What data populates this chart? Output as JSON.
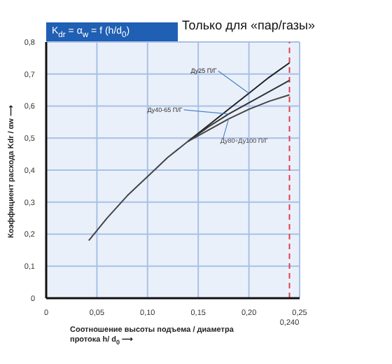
{
  "chart_data": {
    "type": "line",
    "title": "K$_{dr}$ = α$_{w}$ = f (h/d$_{0}$)",
    "subtitle": "Только для «пар/газы»",
    "xlabel": "Соотношение высоты подъема / диаметра протока   h/ d$_{0}$ ⟶",
    "ylabel": "Коэффициент расхода Kdr / αw ⟶",
    "series": [
      {
        "name": "Ду25 П/Г",
        "color": "#222222",
        "x": [
          0.14,
          0.16,
          0.18,
          0.2,
          0.22,
          0.24
        ],
        "values": [
          0.49,
          0.54,
          0.59,
          0.64,
          0.69,
          0.735
        ]
      },
      {
        "name": "Ду40-65 П/Г",
        "color": "#333333",
        "x": [
          0.14,
          0.16,
          0.18,
          0.2,
          0.22,
          0.24
        ],
        "values": [
          0.49,
          0.535,
          0.575,
          0.61,
          0.645,
          0.68
        ]
      },
      {
        "name": "Ду80÷Ду100 П/Г",
        "color": "#444444",
        "x": [
          0.042,
          0.06,
          0.08,
          0.1,
          0.12,
          0.14,
          0.16,
          0.18,
          0.2,
          0.22,
          0.24
        ],
        "values": [
          0.18,
          0.25,
          0.32,
          0.38,
          0.44,
          0.49,
          0.525,
          0.56,
          0.59,
          0.615,
          0.635
        ]
      }
    ],
    "xlim": [
      0,
      0.25
    ],
    "xticks": [
      {
        "value": 0,
        "label": "0"
      },
      {
        "value": 0.05,
        "label": "0,05"
      },
      {
        "value": 0.1,
        "label": "0,10"
      },
      {
        "value": 0.15,
        "label": "0,15"
      },
      {
        "value": 0.2,
        "label": "0,20"
      },
      {
        "value": 0.25,
        "label": "0,25"
      }
    ],
    "ylim": [
      0,
      0.8
    ],
    "yticks": [
      {
        "value": 0,
        "label": "0"
      },
      {
        "value": 0.1,
        "label": "0,1"
      },
      {
        "value": 0.2,
        "label": "0,2"
      },
      {
        "value": 0.3,
        "label": "0,3"
      },
      {
        "value": 0.4,
        "label": "0,4"
      },
      {
        "value": 0.5,
        "label": "0,5"
      },
      {
        "value": 0.6,
        "label": "0,6"
      },
      {
        "value": 0.7,
        "label": "0,7"
      },
      {
        "value": 0.8,
        "label": "0,8"
      }
    ],
    "ref_lines": [
      {
        "axis": "x",
        "value": 0.24,
        "label": "0,240",
        "color": "#e04050",
        "line_style": "dashed"
      }
    ],
    "grid": true,
    "marker": "none",
    "line_style": "solid",
    "legend": false
  }
}
